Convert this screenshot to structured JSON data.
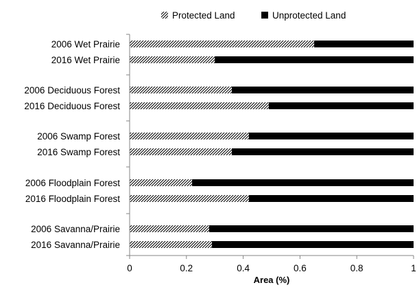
{
  "chart_data": {
    "type": "bar",
    "orientation": "horizontal",
    "stacked": true,
    "categories": [
      "2006 Wet Prairie",
      "2016 Wet Prairie",
      "2006 Deciduous Forest",
      "2016 Deciduous Forest",
      "2006 Swamp Forest",
      "2016 Swamp Forest",
      "2006 Floodplain Forest",
      "2016 Floodplain Forest",
      "2006 Savanna/Prairie",
      "2016 Savanna/Prairie"
    ],
    "series": [
      {
        "name": "Protected Land",
        "pattern": "diagonal-hatch",
        "color": "#000000",
        "values": [
          0.65,
          0.3,
          0.36,
          0.49,
          0.42,
          0.36,
          0.22,
          0.42,
          0.28,
          0.29
        ]
      },
      {
        "name": "Unprotected Land",
        "pattern": "solid",
        "color": "#000000",
        "values": [
          0.35,
          0.7,
          0.64,
          0.51,
          0.58,
          0.64,
          0.78,
          0.58,
          0.72,
          0.71
        ]
      }
    ],
    "title": "",
    "xlabel": "Area (%)",
    "ylabel": "",
    "xlim": [
      0,
      1
    ],
    "xticks": [
      "0",
      "0.2",
      "0.4",
      "0.6",
      "0.8",
      "1"
    ],
    "grid": false,
    "legend_position": "top"
  }
}
